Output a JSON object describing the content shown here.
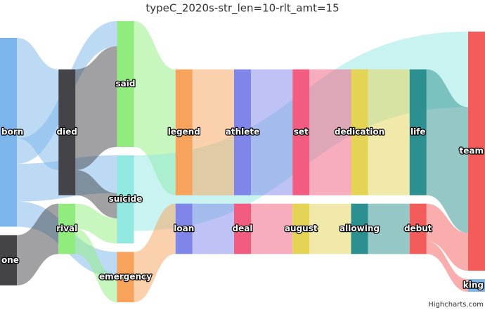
{
  "chart_data": {
    "type": "sankey",
    "title": "typeC_2020s-str_len=10-rlt_amt=15",
    "credits": "Highcharts.com",
    "nodes": [
      {
        "name": "born",
        "color": "#7cb5ec"
      },
      {
        "name": "one",
        "color": "#434348"
      },
      {
        "name": "died",
        "color": "#434348"
      },
      {
        "name": "rival",
        "color": "#90ed7d"
      },
      {
        "name": "said",
        "color": "#90ed7d"
      },
      {
        "name": "suicide",
        "color": "#91e8e1"
      },
      {
        "name": "emergency",
        "color": "#f7a35c"
      },
      {
        "name": "legend",
        "color": "#f7a35c"
      },
      {
        "name": "loan",
        "color": "#8085e9"
      },
      {
        "name": "athlete",
        "color": "#8085e9"
      },
      {
        "name": "deal",
        "color": "#f15c80"
      },
      {
        "name": "set",
        "color": "#f15c80"
      },
      {
        "name": "august",
        "color": "#e4d354"
      },
      {
        "name": "dedication",
        "color": "#e4d354"
      },
      {
        "name": "allowing",
        "color": "#2b908f"
      },
      {
        "name": "life",
        "color": "#2b908f"
      },
      {
        "name": "debut",
        "color": "#f45b5b"
      },
      {
        "name": "team",
        "color": "#f45b5b"
      },
      {
        "name": "king",
        "color": "#7cb5ec"
      }
    ],
    "links": [
      {
        "from": "born",
        "to": "died",
        "weight": 8
      },
      {
        "from": "born",
        "to": "said",
        "weight": 2
      },
      {
        "from": "born",
        "to": "suicide",
        "weight": 3
      },
      {
        "from": "born",
        "to": "emergency",
        "weight": 2
      },
      {
        "from": "one",
        "to": "rival",
        "weight": 4
      },
      {
        "from": "died",
        "to": "said",
        "weight": 8
      },
      {
        "from": "died",
        "to": "suicide",
        "weight": 2
      },
      {
        "from": "rival",
        "to": "suicide",
        "weight": 2
      },
      {
        "from": "rival",
        "to": "emergency",
        "weight": 2
      },
      {
        "from": "said",
        "to": "legend",
        "weight": 10
      },
      {
        "from": "suicide",
        "to": "team",
        "weight": 6
      },
      {
        "from": "emergency",
        "to": "loan",
        "weight": 4
      },
      {
        "from": "legend",
        "to": "athlete",
        "weight": 10
      },
      {
        "from": "athlete",
        "to": "set",
        "weight": 10
      },
      {
        "from": "set",
        "to": "dedication",
        "weight": 10
      },
      {
        "from": "dedication",
        "to": "life",
        "weight": 10
      },
      {
        "from": "life",
        "to": "team",
        "weight": 10
      },
      {
        "from": "loan",
        "to": "deal",
        "weight": 4
      },
      {
        "from": "deal",
        "to": "august",
        "weight": 4
      },
      {
        "from": "august",
        "to": "allowing",
        "weight": 4
      },
      {
        "from": "allowing",
        "to": "debut",
        "weight": 4
      },
      {
        "from": "debut",
        "to": "team",
        "weight": 3
      },
      {
        "from": "debut",
        "to": "king",
        "weight": 1
      }
    ]
  }
}
